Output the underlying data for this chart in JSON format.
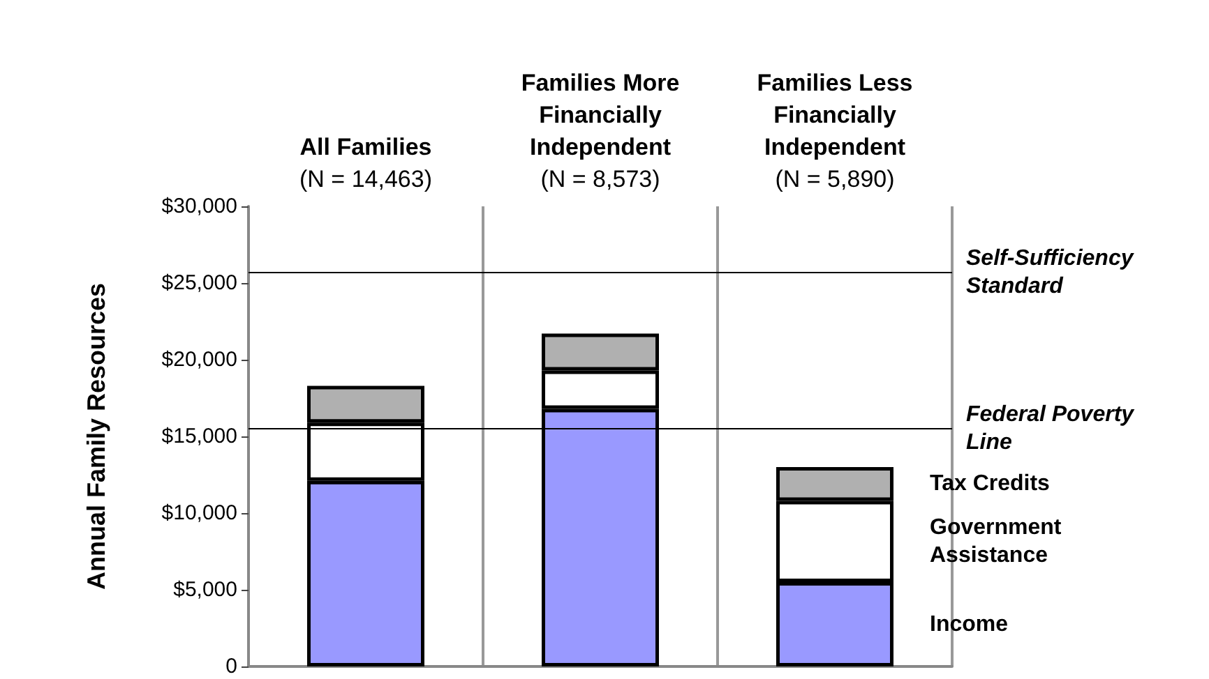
{
  "chart_data": {
    "type": "bar",
    "stacked": true,
    "ylabel": "Annual Family Resources",
    "categories": [
      "All Families\n(N = 14,463)",
      "Families More\nFinancially\nIndependent\n(N = 8,573)",
      "Families Less\nFinancially\nIndependent\n(N = 5,890)"
    ],
    "series": [
      {
        "name": "Income",
        "color": "#9999ff",
        "values": [
          12100,
          16800,
          5500
        ]
      },
      {
        "name": "Government\nAssistance",
        "color": "#ffffff",
        "values": [
          3800,
          2500,
          5300
        ]
      },
      {
        "name": "Tax Credits",
        "color": "#b0b0b0",
        "values": [
          2400,
          2400,
          2200
        ]
      }
    ],
    "ylim": [
      0,
      30000
    ],
    "yticks": [
      {
        "value": 0,
        "label": "0"
      },
      {
        "value": 5000,
        "label": "$5,000"
      },
      {
        "value": 10000,
        "label": "$10,000"
      },
      {
        "value": 15000,
        "label": "$15,000"
      },
      {
        "value": 20000,
        "label": "$20,000"
      },
      {
        "value": 25000,
        "label": "$25,000"
      },
      {
        "value": 30000,
        "label": "$30,000"
      }
    ],
    "ref_lines": [
      {
        "axis": "y",
        "value": 25700,
        "label": "Self-Sufficiency\nStandard"
      },
      {
        "axis": "y",
        "value": 15500,
        "label": "Federal Poverty\nLine"
      }
    ],
    "grid": "x",
    "legend": false
  }
}
